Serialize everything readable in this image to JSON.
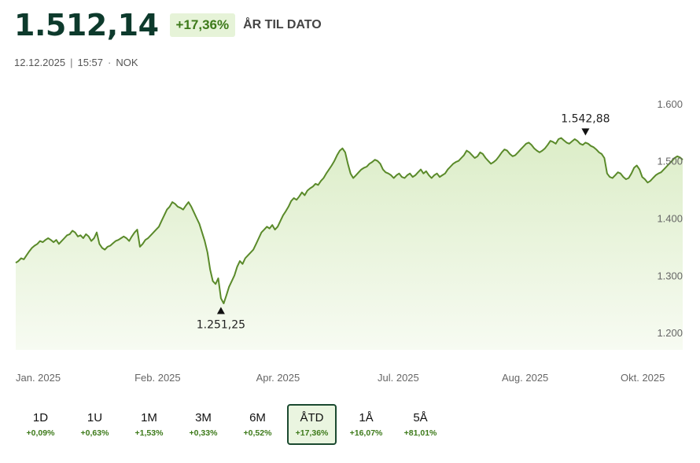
{
  "header": {
    "price": "1.512,14",
    "change": "+17,36%",
    "period": "ÅR TIL DATO"
  },
  "meta": {
    "date": "12.12.2025",
    "separator": "|",
    "time": "15:57",
    "dot": "·",
    "currency": "NOK"
  },
  "colors": {
    "line": "#5a8a2a",
    "fill_top": "#dcedc8",
    "fill_bottom": "#f7fbf2",
    "positive": "#3d7a1a",
    "accent_dark": "#0d3a2c"
  },
  "chart_data": {
    "type": "area",
    "y_ticks": [
      {
        "value": 1600,
        "label": "1.600"
      },
      {
        "value": 1500,
        "label": "1.500"
      },
      {
        "value": 1400,
        "label": "1.400"
      },
      {
        "value": 1300,
        "label": "1.300"
      },
      {
        "value": 1200,
        "label": "1.200"
      }
    ],
    "ylim": [
      1170,
      1630
    ],
    "x_ticks": [
      {
        "index": 0,
        "label": "Jan. 2025"
      },
      {
        "index": 44,
        "label": "Feb. 2025"
      },
      {
        "index": 89,
        "label": "Apr. 2025"
      },
      {
        "index": 134,
        "label": "Jul. 2025"
      },
      {
        "index": 180,
        "label": "Aug. 2025"
      },
      {
        "index": 224,
        "label": "Okt. 2025"
      }
    ],
    "annotations": {
      "max": {
        "index": 211,
        "value": 1542.88,
        "label": "1.542,88"
      },
      "min": {
        "index": 76,
        "value": 1251.25,
        "label": "1.251,25"
      }
    },
    "values": [
      1322,
      1325,
      1330,
      1328,
      1335,
      1342,
      1348,
      1352,
      1355,
      1360,
      1358,
      1362,
      1365,
      1362,
      1358,
      1362,
      1355,
      1360,
      1365,
      1370,
      1372,
      1378,
      1375,
      1368,
      1370,
      1365,
      1372,
      1368,
      1360,
      1365,
      1375,
      1355,
      1348,
      1345,
      1350,
      1352,
      1356,
      1360,
      1362,
      1365,
      1368,
      1365,
      1360,
      1368,
      1375,
      1380,
      1350,
      1355,
      1362,
      1365,
      1370,
      1375,
      1380,
      1385,
      1395,
      1405,
      1415,
      1420,
      1428,
      1425,
      1420,
      1418,
      1415,
      1422,
      1428,
      1420,
      1410,
      1400,
      1390,
      1375,
      1360,
      1340,
      1310,
      1290,
      1285,
      1295,
      1260,
      1251,
      1265,
      1280,
      1290,
      1300,
      1315,
      1325,
      1320,
      1330,
      1335,
      1340,
      1345,
      1355,
      1365,
      1375,
      1380,
      1385,
      1382,
      1388,
      1380,
      1385,
      1395,
      1405,
      1412,
      1420,
      1430,
      1435,
      1432,
      1438,
      1445,
      1440,
      1448,
      1452,
      1455,
      1460,
      1458,
      1465,
      1470,
      1478,
      1485,
      1492,
      1500,
      1510,
      1518,
      1522,
      1515,
      1495,
      1478,
      1470,
      1475,
      1480,
      1485,
      1488,
      1490,
      1495,
      1498,
      1502,
      1500,
      1495,
      1485,
      1480,
      1478,
      1475,
      1470,
      1475,
      1478,
      1472,
      1470,
      1475,
      1478,
      1472,
      1475,
      1480,
      1485,
      1478,
      1482,
      1475,
      1470,
      1475,
      1478,
      1472,
      1475,
      1478,
      1485,
      1490,
      1495,
      1498,
      1500,
      1505,
      1510,
      1518,
      1515,
      1510,
      1505,
      1508,
      1515,
      1512,
      1505,
      1500,
      1495,
      1498,
      1502,
      1508,
      1515,
      1520,
      1518,
      1512,
      1508,
      1510,
      1515,
      1520,
      1525,
      1530,
      1532,
      1528,
      1522,
      1518,
      1515,
      1518,
      1522,
      1528,
      1535,
      1533,
      1530,
      1538,
      1540,
      1536,
      1532,
      1530,
      1534,
      1538,
      1535,
      1530,
      1528,
      1532,
      1530,
      1526,
      1524,
      1520,
      1515,
      1512,
      1505,
      1478,
      1472,
      1470,
      1475,
      1480,
      1478,
      1472,
      1468,
      1470,
      1478,
      1488,
      1492,
      1485,
      1472,
      1468,
      1462,
      1465,
      1470,
      1475,
      1478,
      1480,
      1485,
      1490,
      1495,
      1500,
      1505,
      1508,
      1506,
      1502
    ]
  },
  "ranges": [
    {
      "label": "1D",
      "change": "+0,09%"
    },
    {
      "label": "1U",
      "change": "+0,63%"
    },
    {
      "label": "1M",
      "change": "+1,53%"
    },
    {
      "label": "3M",
      "change": "+0,33%"
    },
    {
      "label": "6M",
      "change": "+0,52%"
    },
    {
      "label": "ÅTD",
      "change": "+17,36%",
      "active": true
    },
    {
      "label": "1Å",
      "change": "+16,07%"
    },
    {
      "label": "5Å",
      "change": "+81,01%"
    }
  ]
}
